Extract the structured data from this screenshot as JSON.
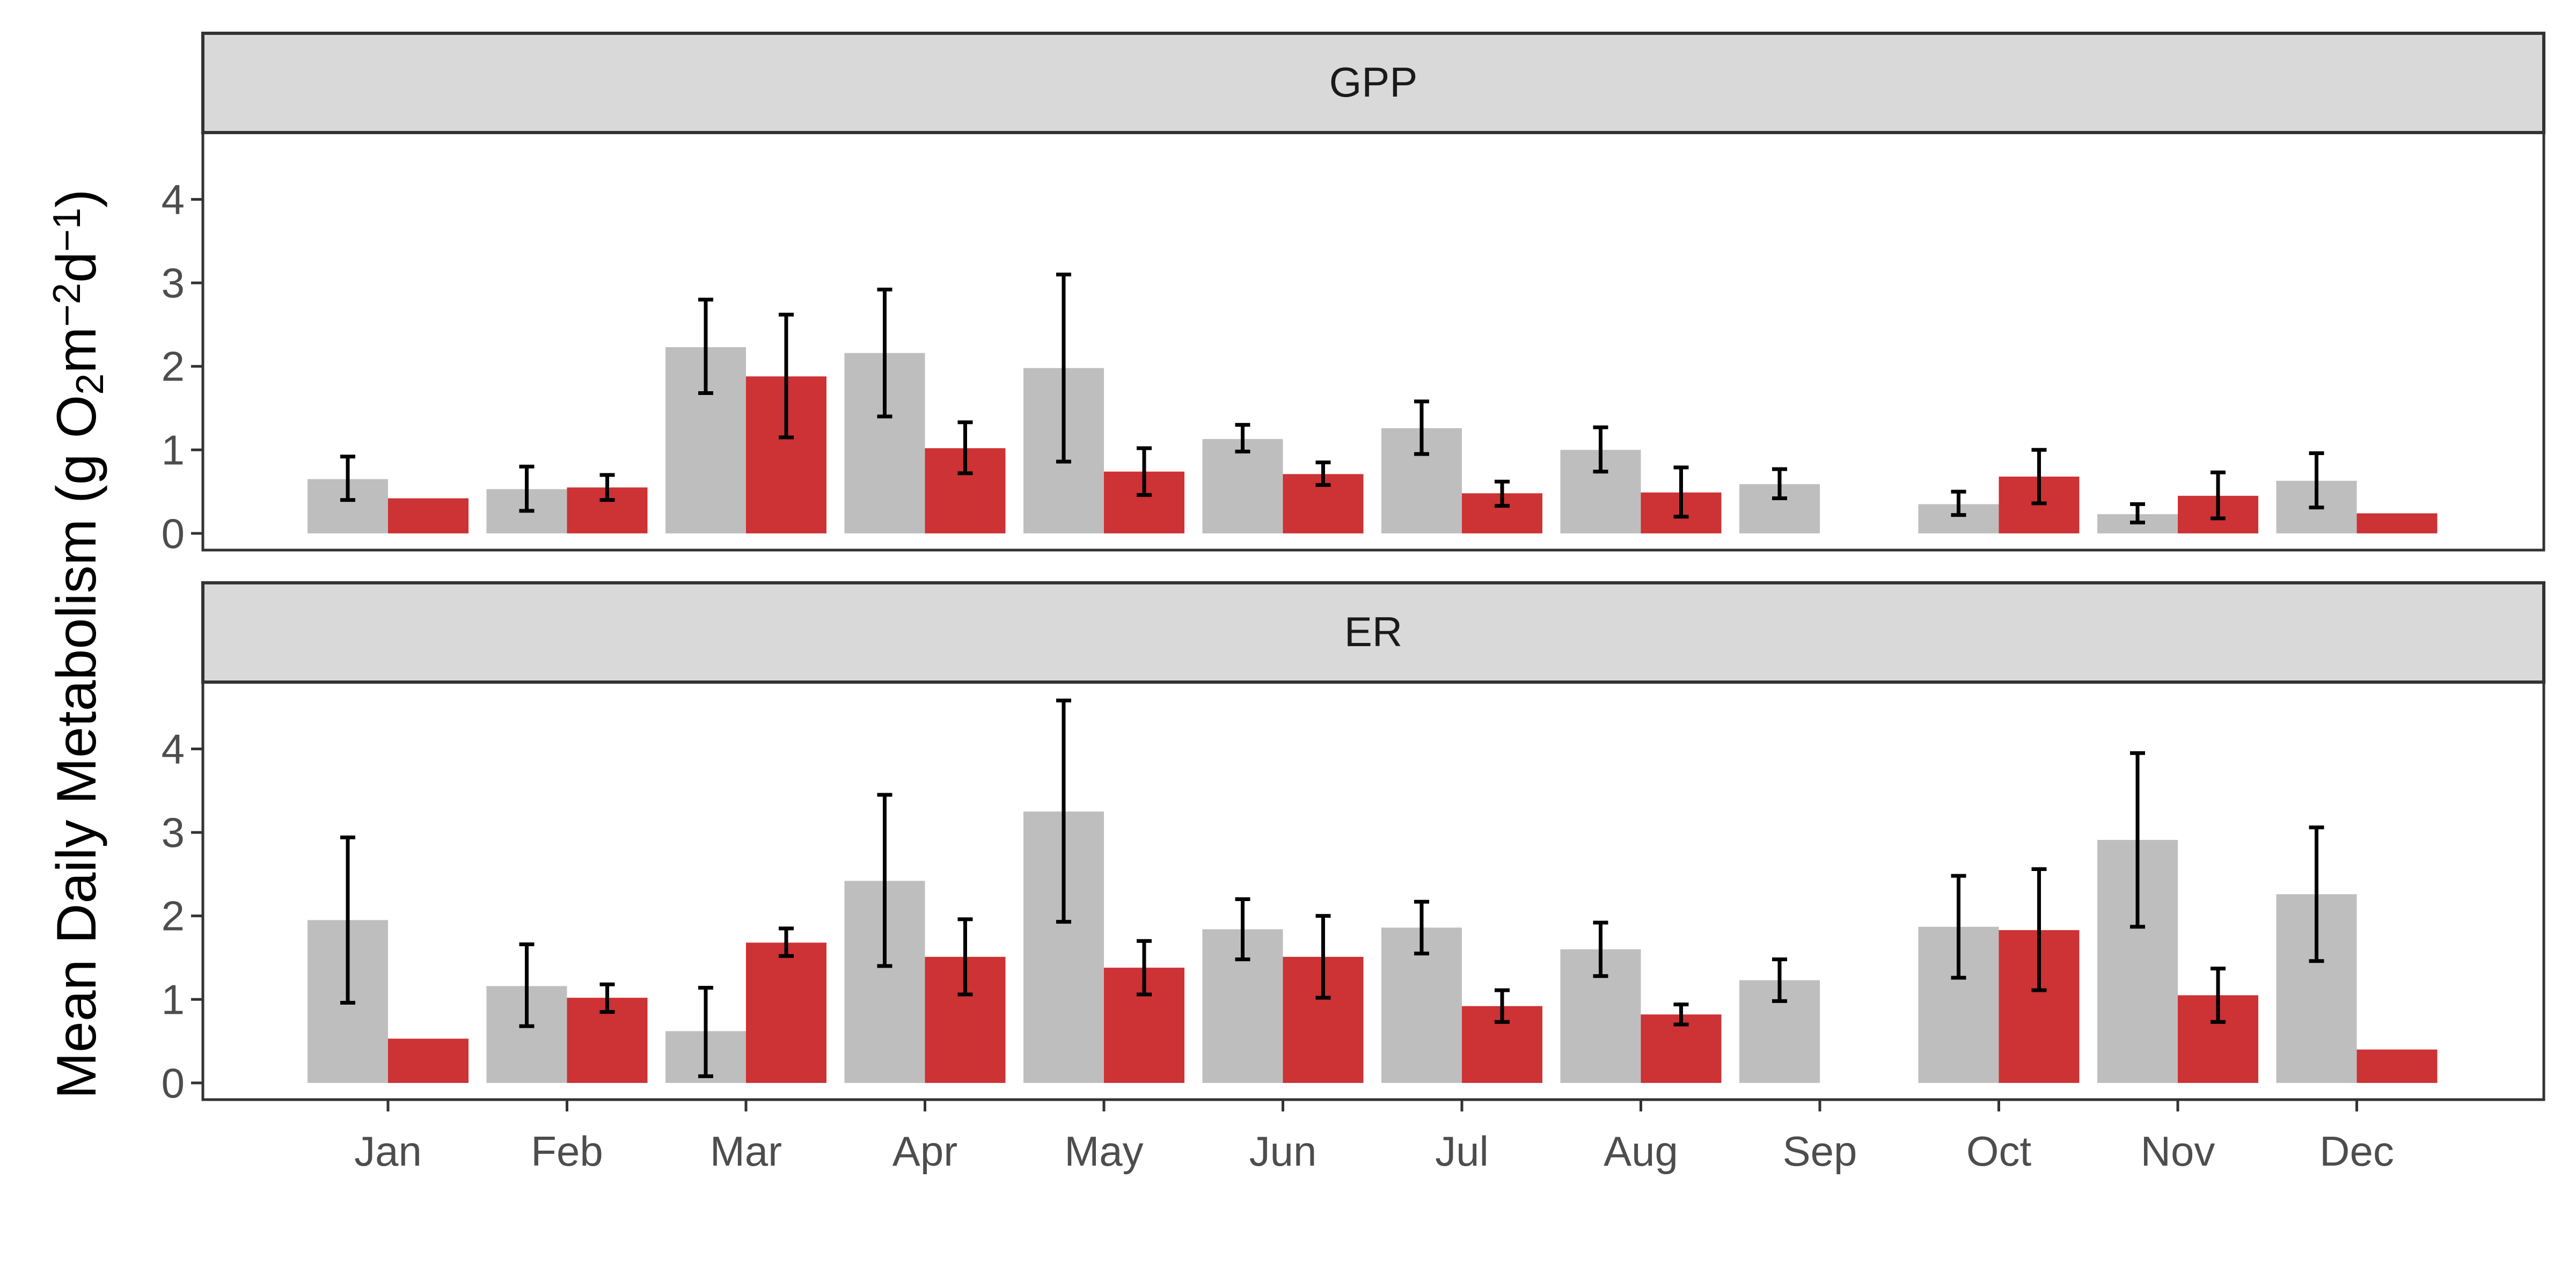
{
  "chart_data": {
    "type": "bar",
    "ylabel": "Mean Daily Metabolism (g O2m−2d−1)",
    "ylabel_parts": {
      "a": "Mean Daily Metabolism (g O",
      "b": "2",
      "c": "m",
      "d": "−2",
      "e": "d",
      "f": "−1",
      "g": ")"
    },
    "categories": [
      "Jan",
      "Feb",
      "Mar",
      "Apr",
      "May",
      "Jun",
      "Jul",
      "Aug",
      "Sep",
      "Oct",
      "Nov",
      "Dec"
    ],
    "yticks": [
      0,
      1,
      2,
      3,
      4
    ],
    "ylim": [
      -0.2,
      4.8
    ],
    "colors": {
      "grey": "#bebebe",
      "red": "#cd3234",
      "strip": "#d9d9d9",
      "frame": "#333333",
      "error": "#000000"
    },
    "panels": [
      {
        "strip": "GPP",
        "bars": [
          [
            {
              "v": 0.65,
              "lo": 0.4,
              "hi": 0.92
            },
            {
              "v": 0.42,
              "lo": null,
              "hi": null
            }
          ],
          [
            {
              "v": 0.53,
              "lo": 0.27,
              "hi": 0.8
            },
            {
              "v": 0.55,
              "lo": 0.4,
              "hi": 0.7
            }
          ],
          [
            {
              "v": 2.23,
              "lo": 1.68,
              "hi": 2.8
            },
            {
              "v": 1.88,
              "lo": 1.15,
              "hi": 2.62
            }
          ],
          [
            {
              "v": 2.16,
              "lo": 1.4,
              "hi": 2.92
            },
            {
              "v": 1.02,
              "lo": 0.72,
              "hi": 1.33
            }
          ],
          [
            {
              "v": 1.98,
              "lo": 0.86,
              "hi": 3.1
            },
            {
              "v": 0.74,
              "lo": 0.46,
              "hi": 1.02
            }
          ],
          [
            {
              "v": 1.13,
              "lo": 0.98,
              "hi": 1.3
            },
            {
              "v": 0.71,
              "lo": 0.58,
              "hi": 0.85
            }
          ],
          [
            {
              "v": 1.26,
              "lo": 0.95,
              "hi": 1.58
            },
            {
              "v": 0.48,
              "lo": 0.33,
              "hi": 0.62
            }
          ],
          [
            {
              "v": 1.0,
              "lo": 0.74,
              "hi": 1.27
            },
            {
              "v": 0.49,
              "lo": 0.2,
              "hi": 0.79
            }
          ],
          [
            {
              "v": 0.59,
              "lo": 0.42,
              "hi": 0.77
            },
            null
          ],
          [
            {
              "v": 0.35,
              "lo": 0.22,
              "hi": 0.5
            },
            {
              "v": 0.68,
              "lo": 0.36,
              "hi": 1.0
            }
          ],
          [
            {
              "v": 0.23,
              "lo": 0.13,
              "hi": 0.35
            },
            {
              "v": 0.45,
              "lo": 0.18,
              "hi": 0.73
            }
          ],
          [
            {
              "v": 0.63,
              "lo": 0.31,
              "hi": 0.96
            },
            {
              "v": 0.24,
              "lo": null,
              "hi": null
            }
          ]
        ]
      },
      {
        "strip": "ER",
        "bars": [
          [
            {
              "v": 1.95,
              "lo": 0.96,
              "hi": 2.94
            },
            {
              "v": 0.53,
              "lo": null,
              "hi": null
            }
          ],
          [
            {
              "v": 1.16,
              "lo": 0.68,
              "hi": 1.66
            },
            {
              "v": 1.02,
              "lo": 0.85,
              "hi": 1.18
            }
          ],
          [
            {
              "v": 0.62,
              "lo": 0.08,
              "hi": 1.14
            },
            {
              "v": 1.68,
              "lo": 1.52,
              "hi": 1.85
            }
          ],
          [
            {
              "v": 2.42,
              "lo": 1.4,
              "hi": 3.45
            },
            {
              "v": 1.51,
              "lo": 1.06,
              "hi": 1.96
            }
          ],
          [
            {
              "v": 3.25,
              "lo": 1.93,
              "hi": 4.58
            },
            {
              "v": 1.38,
              "lo": 1.06,
              "hi": 1.7
            }
          ],
          [
            {
              "v": 1.84,
              "lo": 1.48,
              "hi": 2.2
            },
            {
              "v": 1.51,
              "lo": 1.02,
              "hi": 2.0
            }
          ],
          [
            {
              "v": 1.86,
              "lo": 1.55,
              "hi": 2.17
            },
            {
              "v": 0.92,
              "lo": 0.73,
              "hi": 1.11
            }
          ],
          [
            {
              "v": 1.6,
              "lo": 1.28,
              "hi": 1.92
            },
            {
              "v": 0.82,
              "lo": 0.7,
              "hi": 0.94
            }
          ],
          [
            {
              "v": 1.23,
              "lo": 0.98,
              "hi": 1.48
            },
            null
          ],
          [
            {
              "v": 1.87,
              "lo": 1.26,
              "hi": 2.48
            },
            {
              "v": 1.83,
              "lo": 1.11,
              "hi": 2.56
            }
          ],
          [
            {
              "v": 2.91,
              "lo": 1.87,
              "hi": 3.95
            },
            {
              "v": 1.05,
              "lo": 0.73,
              "hi": 1.37
            }
          ],
          [
            {
              "v": 2.26,
              "lo": 1.46,
              "hi": 3.06
            },
            {
              "v": 0.4,
              "lo": null,
              "hi": null
            }
          ]
        ]
      }
    ]
  }
}
